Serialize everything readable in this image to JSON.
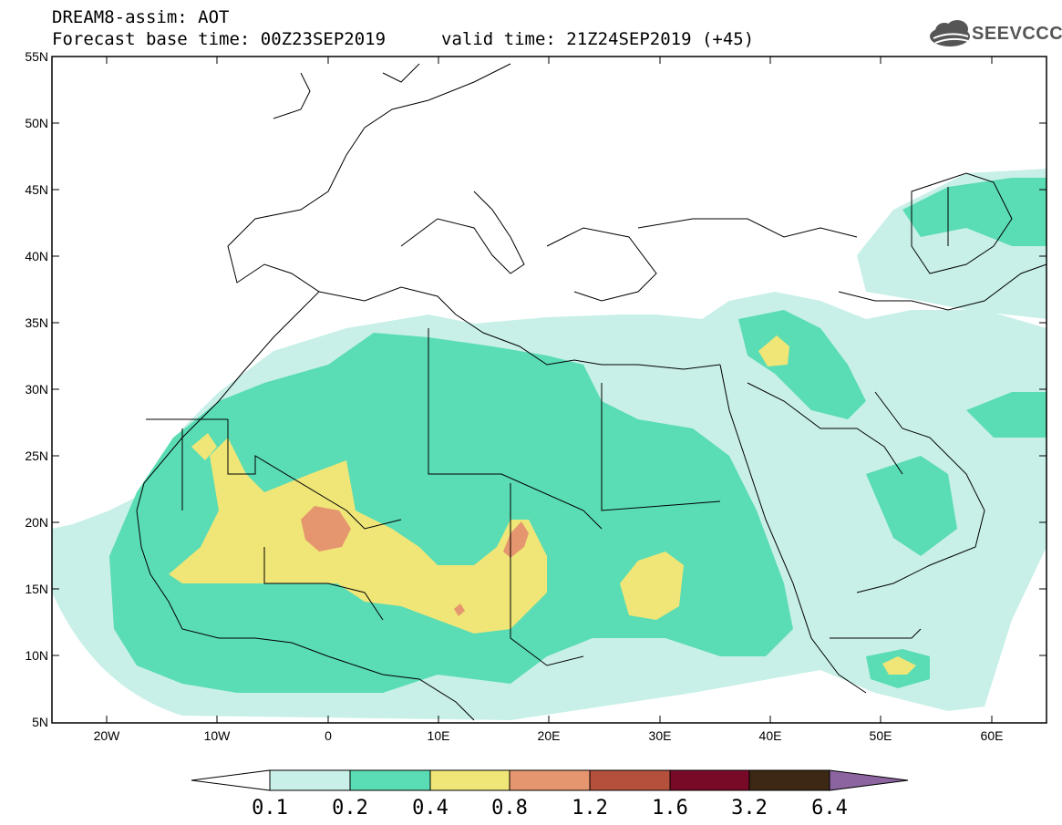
{
  "header": {
    "title": "DREAM8-assim: AOT",
    "base_time": "Forecast base time: 00Z23SEP2019",
    "valid_time": "valid time: 21Z24SEP2019 (+45)",
    "logo_text": "SEEVCCC"
  },
  "map": {
    "variable": "AOT",
    "lat_range": [
      5,
      55
    ],
    "lon_range": [
      -25,
      65
    ],
    "lat_ticks": [
      "55N",
      "50N",
      "45N",
      "40N",
      "35N",
      "30N",
      "25N",
      "20N",
      "15N",
      "10N",
      "5N"
    ],
    "lon_ticks": [
      "20W",
      "10W",
      "0",
      "10E",
      "20E",
      "30E",
      "40E",
      "50E",
      "60E"
    ],
    "colors": {
      "lev1": "#c8f0e8",
      "lev2": "#5adcb4",
      "lev3": "#f0e678",
      "lev4": "#e6966e",
      "lev5": "#b4503c",
      "lev6": "#780a28",
      "lev7": "#3c2814",
      "lev8": "#8c64a0",
      "coast": "#000000"
    }
  },
  "colorbar": {
    "labels": [
      "0.1",
      "0.2",
      "0.4",
      "0.8",
      "1.2",
      "1.6",
      "3.2",
      "6.4"
    ],
    "colors": [
      "#c8f0e8",
      "#5adcb4",
      "#f0e678",
      "#e6966e",
      "#b4503c",
      "#780a28",
      "#3c2814"
    ],
    "over_color": "#8c64a0",
    "under_color": "#ffffff"
  }
}
